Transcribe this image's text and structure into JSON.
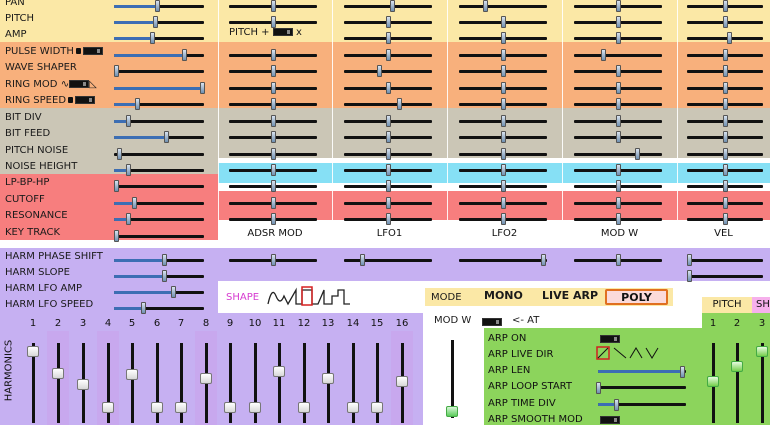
{
  "rows": {
    "pan": "PAN",
    "pitch": "PITCH",
    "amp": "AMP",
    "pulse_width": "PULSE WIDTH",
    "wave_shaper": "WAVE SHAPER",
    "ring_mod": "RING MOD",
    "ring_speed": "RING SPEED",
    "bit_div": "BIT DIV",
    "bit_feed": "BIT FEED",
    "pitch_noise": "PITCH NOISE",
    "noise_height": "NOISE HEIGHT",
    "lp_bp_hp": "LP-BP-HP",
    "cutoff": "CUTOFF",
    "resonance": "RESONANCE",
    "key_track": "KEY TRACK",
    "harm_phase_shift": "HARM PHASE SHIFT",
    "harm_slope": "HARM SLOPE",
    "harm_lfo_amp": "HARM LFO AMP",
    "harm_lfo_speed": "HARM LFO SPEED"
  },
  "pitch_mult": {
    "label": "PITCH +",
    "suffix": "x"
  },
  "ring_mod_symbol": "∿",
  "columns": {
    "adsr_mod": "ADSR MOD",
    "lfo1": "LFO1",
    "lfo2": "LFO2",
    "mod_w": "MOD W",
    "vel": "VEL"
  },
  "shape": {
    "label": "SHAPE"
  },
  "mode": {
    "label": "MODE",
    "mono": "MONO",
    "live_arp": "LIVE ARP",
    "poly": "POLY",
    "selected": "POLY"
  },
  "modw": {
    "label": "MOD W",
    "at": "<- AT"
  },
  "arp": {
    "on": "ARP ON",
    "live_dir": "ARP LIVE DIR",
    "len": "ARP LEN",
    "loop_start": "ARP LOOP START",
    "time_div": "ARP TIME DIV",
    "smooth_mod": "ARP SMOOTH MOD"
  },
  "harmonics": {
    "label": "HARMONICS",
    "numbers": [
      "1",
      "2",
      "3",
      "4",
      "5",
      "6",
      "7",
      "8",
      "9",
      "10",
      "11",
      "12",
      "13",
      "14",
      "15",
      "16"
    ],
    "levels": [
      0.95,
      0.62,
      0.45,
      0.1,
      0.6,
      0.1,
      0.1,
      0.55,
      0.1,
      0.1,
      0.65,
      0.1,
      0.55,
      0.1,
      0.1,
      0.5
    ]
  },
  "right_tabs": {
    "pitch": "PITCH",
    "sh": "SH"
  },
  "right_numbers": [
    "1",
    "2",
    "3"
  ],
  "colors": {
    "yellow": "#fbe8a6",
    "orange": "#f8b07c",
    "gray": "#cbc6b6",
    "red": "#f77e7e",
    "purple": "#c6b0f2",
    "cyan": "#86e0f5",
    "green": "#8cd45c",
    "mode_bar": "#fbe8a6",
    "poly": "#fbdada"
  }
}
